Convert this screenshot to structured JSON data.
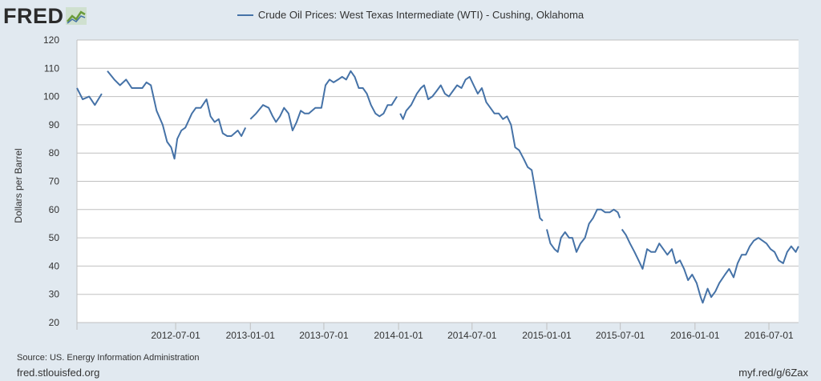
{
  "brand": {
    "name": "FRED",
    "logo_icon": "fred-trend-logo-icon"
  },
  "colors": {
    "line": "#4572a7",
    "grid": "#c0c0c0",
    "plot_bg": "#ffffff",
    "page_bg": "#e1e9f0"
  },
  "chart_data": {
    "type": "line",
    "title": "",
    "xlabel": "",
    "ylabel": "Dollars per Barrel",
    "ylim": [
      20,
      120
    ],
    "yticks": [
      20,
      30,
      40,
      50,
      60,
      70,
      80,
      90,
      100,
      110,
      120
    ],
    "xlim": [
      "2011-11-01",
      "2016-09-12"
    ],
    "xticks": [
      "2012-07-01",
      "2013-01-01",
      "2013-07-01",
      "2014-01-01",
      "2014-07-01",
      "2015-01-01",
      "2015-07-01",
      "2016-01-01",
      "2016-07-01"
    ],
    "grid": true,
    "legend": "top-center",
    "series": [
      {
        "name": "Crude Oil Prices: West Texas Intermediate (WTI) - Cushing, Oklahoma",
        "segments": [
          [
            [
              "2011-11-01",
              103
            ],
            [
              "2011-11-15",
              99
            ],
            [
              "2011-12-01",
              100
            ],
            [
              "2011-12-15",
              97
            ],
            [
              "2012-01-01",
              101
            ]
          ],
          [
            [
              "2012-01-15",
              109
            ],
            [
              "2012-02-01",
              106
            ],
            [
              "2012-02-15",
              104
            ],
            [
              "2012-03-01",
              106
            ],
            [
              "2012-03-15",
              103
            ],
            [
              "2012-03-30",
              103
            ],
            [
              "2012-04-10",
              103
            ],
            [
              "2012-04-20",
              105
            ],
            [
              "2012-05-01",
              104
            ],
            [
              "2012-05-15",
              95
            ],
            [
              "2012-05-30",
              90
            ],
            [
              "2012-06-10",
              84
            ],
            [
              "2012-06-20",
              82
            ],
            [
              "2012-06-28",
              78
            ],
            [
              "2012-07-05",
              85
            ],
            [
              "2012-07-15",
              88
            ],
            [
              "2012-07-25",
              89
            ],
            [
              "2012-08-10",
              94
            ],
            [
              "2012-08-20",
              96
            ],
            [
              "2012-09-01",
              96
            ],
            [
              "2012-09-15",
              99
            ],
            [
              "2012-09-25",
              93
            ],
            [
              "2012-10-05",
              91
            ],
            [
              "2012-10-15",
              92
            ],
            [
              "2012-10-25",
              87
            ],
            [
              "2012-11-05",
              86
            ],
            [
              "2012-11-15",
              86
            ],
            [
              "2012-12-01",
              88
            ],
            [
              "2012-12-10",
              86
            ],
            [
              "2012-12-20",
              89
            ]
          ],
          [
            [
              "2013-01-01",
              92
            ],
            [
              "2013-01-15",
              94
            ],
            [
              "2013-02-01",
              97
            ],
            [
              "2013-02-15",
              96
            ],
            [
              "2013-02-25",
              93
            ],
            [
              "2013-03-05",
              91
            ],
            [
              "2013-03-15",
              93
            ],
            [
              "2013-03-25",
              96
            ],
            [
              "2013-04-05",
              94
            ],
            [
              "2013-04-15",
              88
            ],
            [
              "2013-04-25",
              91
            ],
            [
              "2013-05-05",
              95
            ],
            [
              "2013-05-15",
              94
            ],
            [
              "2013-05-25",
              94
            ],
            [
              "2013-06-10",
              96
            ],
            [
              "2013-06-25",
              96
            ],
            [
              "2013-07-05",
              104
            ],
            [
              "2013-07-15",
              106
            ],
            [
              "2013-07-25",
              105
            ],
            [
              "2013-08-05",
              106
            ],
            [
              "2013-08-15",
              107
            ],
            [
              "2013-08-25",
              106
            ],
            [
              "2013-09-05",
              109
            ],
            [
              "2013-09-15",
              107
            ],
            [
              "2013-09-25",
              103
            ],
            [
              "2013-10-05",
              103
            ],
            [
              "2013-10-15",
              101
            ],
            [
              "2013-10-25",
              97
            ],
            [
              "2013-11-05",
              94
            ],
            [
              "2013-11-15",
              93
            ],
            [
              "2013-11-25",
              94
            ],
            [
              "2013-12-05",
              97
            ],
            [
              "2013-12-15",
              97
            ],
            [
              "2013-12-28",
              100
            ]
          ],
          [
            [
              "2014-01-05",
              94
            ],
            [
              "2014-01-12",
              92
            ],
            [
              "2014-01-20",
              95
            ],
            [
              "2014-02-01",
              97
            ],
            [
              "2014-02-15",
              101
            ],
            [
              "2014-02-25",
              103
            ],
            [
              "2014-03-05",
              104
            ],
            [
              "2014-03-15",
              99
            ],
            [
              "2014-03-25",
              100
            ],
            [
              "2014-04-05",
              102
            ],
            [
              "2014-04-15",
              104
            ],
            [
              "2014-04-25",
              101
            ],
            [
              "2014-05-05",
              100
            ],
            [
              "2014-05-15",
              102
            ],
            [
              "2014-05-25",
              104
            ],
            [
              "2014-06-05",
              103
            ],
            [
              "2014-06-15",
              106
            ],
            [
              "2014-06-25",
              107
            ],
            [
              "2014-07-05",
              104
            ],
            [
              "2014-07-15",
              101
            ],
            [
              "2014-07-25",
              103
            ],
            [
              "2014-08-05",
              98
            ],
            [
              "2014-08-15",
              96
            ],
            [
              "2014-08-25",
              94
            ],
            [
              "2014-09-05",
              94
            ],
            [
              "2014-09-15",
              92
            ],
            [
              "2014-09-25",
              93
            ],
            [
              "2014-10-05",
              90
            ],
            [
              "2014-10-15",
              82
            ],
            [
              "2014-10-25",
              81
            ],
            [
              "2014-11-05",
              78
            ],
            [
              "2014-11-15",
              75
            ],
            [
              "2014-11-25",
              74
            ],
            [
              "2014-12-01",
              69
            ],
            [
              "2014-12-08",
              63
            ],
            [
              "2014-12-15",
              57
            ],
            [
              "2014-12-22",
              56
            ]
          ],
          [
            [
              "2015-01-01",
              53
            ],
            [
              "2015-01-10",
              48
            ],
            [
              "2015-01-20",
              46
            ],
            [
              "2015-01-28",
              45
            ],
            [
              "2015-02-05",
              50
            ],
            [
              "2015-02-15",
              52
            ],
            [
              "2015-02-25",
              50
            ],
            [
              "2015-03-05",
              50
            ],
            [
              "2015-03-15",
              45
            ],
            [
              "2015-03-25",
              48
            ],
            [
              "2015-04-05",
              50
            ],
            [
              "2015-04-15",
              55
            ],
            [
              "2015-04-25",
              57
            ],
            [
              "2015-05-05",
              60
            ],
            [
              "2015-05-15",
              60
            ],
            [
              "2015-05-25",
              59
            ],
            [
              "2015-06-05",
              59
            ],
            [
              "2015-06-15",
              60
            ],
            [
              "2015-06-25",
              59
            ],
            [
              "2015-06-30",
              57
            ]
          ],
          [
            [
              "2015-07-05",
              53
            ],
            [
              "2015-07-15",
              51
            ],
            [
              "2015-07-25",
              48
            ],
            [
              "2015-08-05",
              45
            ],
            [
              "2015-08-15",
              42
            ],
            [
              "2015-08-25",
              39
            ],
            [
              "2015-09-05",
              46
            ],
            [
              "2015-09-15",
              45
            ],
            [
              "2015-09-25",
              45
            ],
            [
              "2015-10-05",
              48
            ],
            [
              "2015-10-15",
              46
            ],
            [
              "2015-10-25",
              44
            ],
            [
              "2015-11-05",
              46
            ],
            [
              "2015-11-15",
              41
            ],
            [
              "2015-11-25",
              42
            ],
            [
              "2015-12-05",
              39
            ],
            [
              "2015-12-15",
              35
            ],
            [
              "2015-12-25",
              37
            ],
            [
              "2016-01-05",
              34
            ],
            [
              "2016-01-15",
              29
            ],
            [
              "2016-01-20",
              27
            ],
            [
              "2016-02-01",
              32
            ],
            [
              "2016-02-10",
              29
            ],
            [
              "2016-02-20",
              31
            ],
            [
              "2016-03-01",
              34
            ],
            [
              "2016-03-15",
              37
            ],
            [
              "2016-03-25",
              39
            ],
            [
              "2016-04-05",
              36
            ],
            [
              "2016-04-15",
              41
            ],
            [
              "2016-04-25",
              44
            ],
            [
              "2016-05-05",
              44
            ],
            [
              "2016-05-15",
              47
            ],
            [
              "2016-05-25",
              49
            ],
            [
              "2016-06-05",
              50
            ],
            [
              "2016-06-15",
              49
            ],
            [
              "2016-06-25",
              48
            ],
            [
              "2016-07-05",
              46
            ],
            [
              "2016-07-15",
              45
            ],
            [
              "2016-07-25",
              42
            ],
            [
              "2016-08-05",
              41
            ],
            [
              "2016-08-15",
              45
            ],
            [
              "2016-08-25",
              47
            ],
            [
              "2016-09-05",
              45
            ],
            [
              "2016-09-12",
              47
            ]
          ]
        ]
      }
    ]
  },
  "footer": {
    "source": "Source: US. Energy Information Administration",
    "url": "fred.stlouisfed.org",
    "short_link": "myf.red/g/6Zax"
  }
}
